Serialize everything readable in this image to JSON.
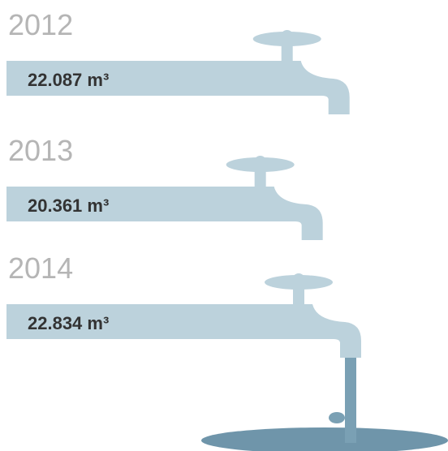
{
  "chart_data": {
    "type": "bar",
    "orientation": "horizontal",
    "categories": [
      "2012",
      "2013",
      "2014"
    ],
    "values": [
      22087,
      20361,
      22834
    ],
    "value_labels": [
      "22.087 m³",
      "20.361 m³",
      "22.834 m³"
    ],
    "color": "#bcd2dc"
  }
}
